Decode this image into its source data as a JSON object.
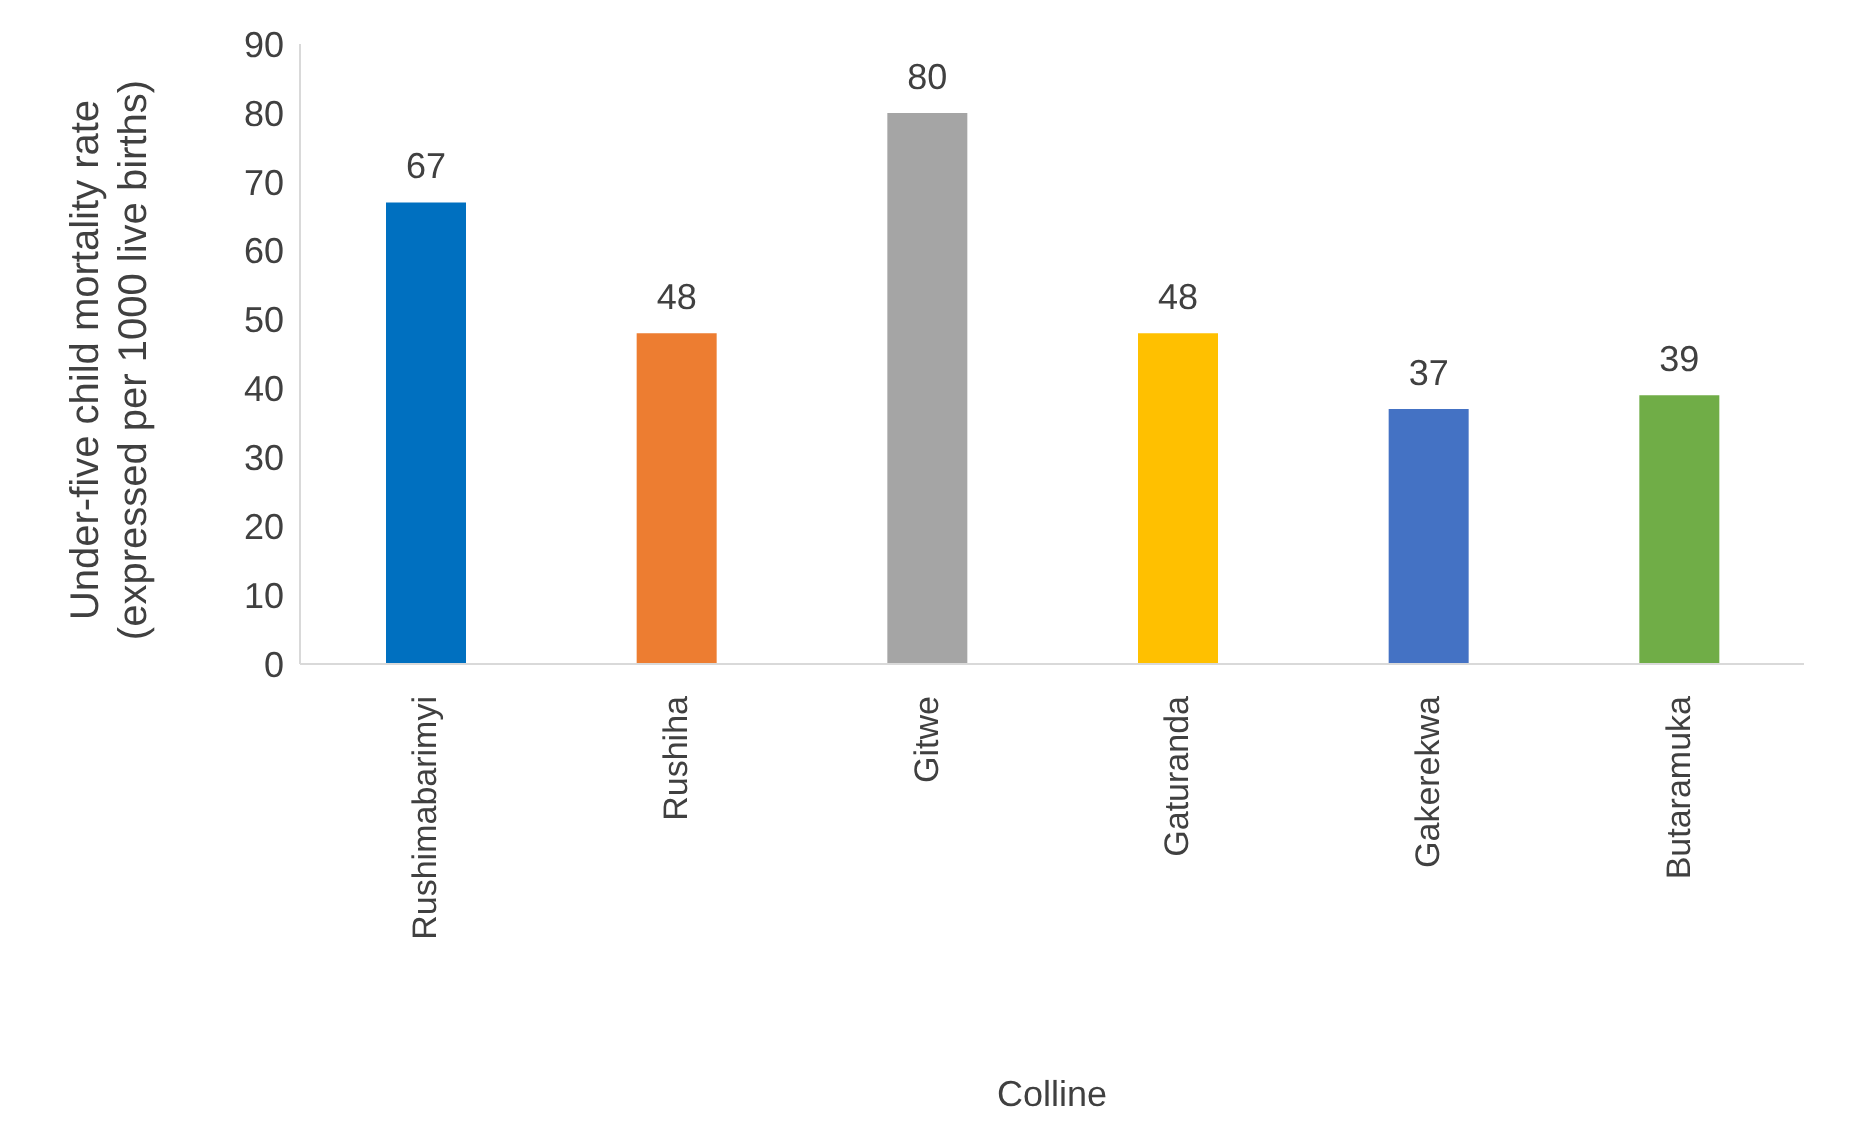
{
  "chart_data": {
    "type": "bar",
    "xlabel": "Colline",
    "ylabel": "Under-five child mortality rate (expressed per 1000 live births)",
    "categories": [
      "Rushimabarimyi",
      "Rushiha",
      "Gitwe",
      "Gaturanda",
      "Gakerekwa",
      "Butaramuka"
    ],
    "values": [
      67,
      48,
      80,
      48,
      37,
      39
    ],
    "colors": [
      "#0070c0",
      "#ed7d31",
      "#a5a5a5",
      "#ffc000",
      "#4472c4",
      "#70ad47"
    ],
    "ylim": [
      0,
      90
    ],
    "yticks": [
      0,
      10,
      20,
      30,
      40,
      50,
      60,
      70,
      80,
      90
    ],
    "grid": false,
    "legend": false,
    "data_labels": true
  }
}
